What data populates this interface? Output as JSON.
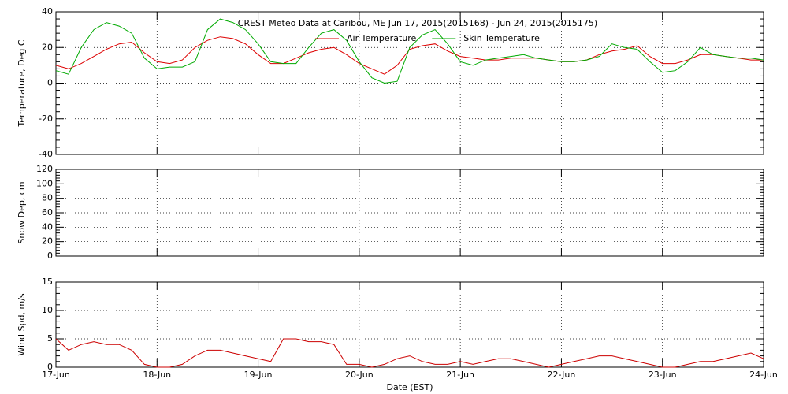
{
  "chart_data": [
    {
      "type": "line",
      "title": "CREST Meteo Data at Caribou, ME   Jun 17, 2015(2015168) - Jun 24, 2015(2015175)",
      "ylabel": "Temperature, Deg C",
      "legend": "top",
      "grid": true,
      "xlim": [
        0,
        7
      ],
      "xticks": [
        0,
        1,
        2,
        3,
        4,
        5,
        6,
        7
      ],
      "ylim": [
        -40,
        40
      ],
      "yticks": [
        -40,
        -20,
        0,
        20,
        40
      ],
      "x": [
        0,
        0.125,
        0.25,
        0.375,
        0.5,
        0.625,
        0.75,
        0.875,
        1,
        1.125,
        1.25,
        1.375,
        1.5,
        1.625,
        1.75,
        1.875,
        2,
        2.125,
        2.25,
        2.375,
        2.5,
        2.625,
        2.75,
        2.875,
        3,
        3.125,
        3.25,
        3.375,
        3.5,
        3.625,
        3.75,
        3.875,
        4,
        4.125,
        4.25,
        4.375,
        4.5,
        4.625,
        4.75,
        4.875,
        5,
        5.125,
        5.25,
        5.375,
        5.5,
        5.625,
        5.75,
        5.875,
        6,
        6.125,
        6.25,
        6.375,
        6.5,
        6.625,
        6.75,
        6.875,
        7
      ],
      "series": [
        {
          "name": "Air Temperature",
          "color": "#dd0000",
          "values": [
            10,
            8,
            11,
            15,
            19,
            22,
            23,
            17,
            12,
            11,
            13,
            20,
            24,
            26,
            25,
            22,
            16,
            11,
            11,
            14,
            17,
            19,
            20,
            16,
            11,
            8,
            5,
            10,
            19,
            21,
            22,
            18,
            15,
            14,
            13,
            13,
            14,
            14,
            14,
            13,
            12,
            12,
            13,
            16,
            18,
            19,
            21,
            15,
            11,
            11,
            13,
            16,
            16,
            15,
            14,
            13,
            13
          ]
        },
        {
          "name": "Skin Temperature",
          "color": "#00aa00",
          "values": [
            7,
            5,
            20,
            30,
            34,
            32,
            28,
            14,
            8,
            9,
            9,
            12,
            30,
            36,
            34,
            30,
            22,
            12,
            11,
            11,
            20,
            28,
            30,
            24,
            12,
            3,
            0,
            1,
            20,
            27,
            30,
            22,
            12,
            10,
            13,
            14,
            15,
            16,
            14,
            13,
            12,
            12,
            13,
            15,
            22,
            20,
            19,
            12,
            6,
            7,
            12,
            20,
            16,
            15,
            14,
            14,
            13
          ]
        }
      ]
    },
    {
      "type": "line",
      "ylabel": "Snow Dep, cm",
      "grid": true,
      "xlim": [
        0,
        7
      ],
      "xticks": [
        0,
        1,
        2,
        3,
        4,
        5,
        6,
        7
      ],
      "ylim": [
        0,
        120
      ],
      "yticks": [
        0,
        20,
        40,
        60,
        80,
        100,
        120
      ],
      "series": []
    },
    {
      "type": "line",
      "ylabel": "Wind Spd, m/s",
      "xlabel": "Date (EST)",
      "grid": true,
      "xlim": [
        0,
        7
      ],
      "xticks": [
        {
          "value": 0,
          "label": "17-Jun"
        },
        {
          "value": 1,
          "label": "18-Jun"
        },
        {
          "value": 2,
          "label": "19-Jun"
        },
        {
          "value": 3,
          "label": "20-Jun"
        },
        {
          "value": 4,
          "label": "21-Jun"
        },
        {
          "value": 5,
          "label": "22-Jun"
        },
        {
          "value": 6,
          "label": "23-Jun"
        },
        {
          "value": 7,
          "label": "24-Jun"
        }
      ],
      "ylim": [
        0,
        15
      ],
      "yticks": [
        0,
        5,
        10,
        15
      ],
      "x": [
        0,
        0.125,
        0.25,
        0.375,
        0.5,
        0.625,
        0.75,
        0.875,
        1,
        1.125,
        1.25,
        1.375,
        1.5,
        1.625,
        1.75,
        1.875,
        2,
        2.125,
        2.25,
        2.375,
        2.5,
        2.625,
        2.75,
        2.875,
        3,
        3.125,
        3.25,
        3.375,
        3.5,
        3.625,
        3.75,
        3.875,
        4,
        4.125,
        4.25,
        4.375,
        4.5,
        4.625,
        4.75,
        4.875,
        5,
        5.125,
        5.25,
        5.375,
        5.5,
        5.625,
        5.75,
        5.875,
        6,
        6.125,
        6.25,
        6.375,
        6.5,
        6.625,
        6.75,
        6.875,
        7
      ],
      "series": [
        {
          "color": "#cc0000",
          "values": [
            5,
            3,
            4,
            4.5,
            4,
            4,
            3,
            0.5,
            0,
            0,
            0.5,
            2,
            3,
            3,
            2.5,
            2,
            1.5,
            1,
            5,
            5,
            4.5,
            4.5,
            4,
            0.5,
            0.5,
            0,
            0.5,
            1.5,
            2,
            1,
            0.5,
            0.5,
            1,
            0.5,
            1,
            1.5,
            1.5,
            1,
            0.5,
            0,
            0.5,
            1,
            1.5,
            2,
            2,
            1.5,
            1,
            0.5,
            0,
            0,
            0.5,
            1,
            1,
            1.5,
            2,
            2.5,
            1.5
          ]
        }
      ]
    }
  ]
}
